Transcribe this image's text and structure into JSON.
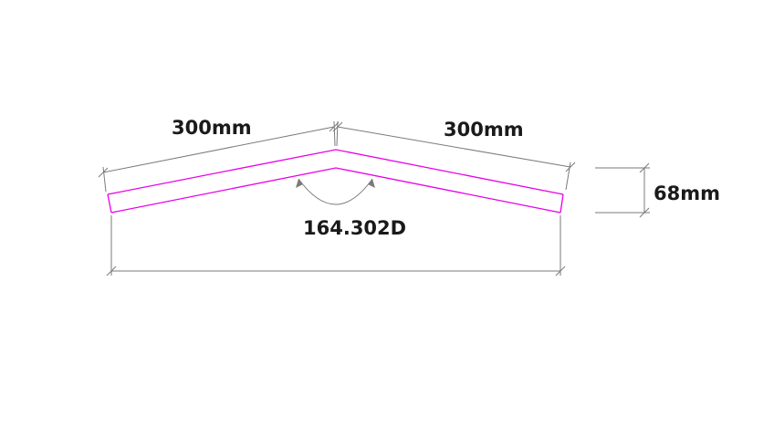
{
  "drawing": {
    "left_length_label": "300mm",
    "right_length_label": "300mm",
    "height_label": "68mm",
    "angle_label": "164.302D",
    "colors": {
      "profile": "#e800e8",
      "dimension": "#7a7a7a",
      "text": "#1a1a1a",
      "background": "#ffffff"
    }
  }
}
